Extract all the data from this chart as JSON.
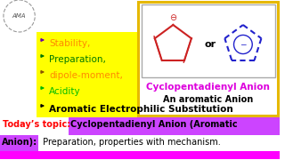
{
  "bg_color": "#ffffff",
  "bullet_items": [
    {
      "text": "Stability,",
      "color": "#ff8800",
      "arrow_color": "#6600aa"
    },
    {
      "text": "Preparation,",
      "color": "#007700",
      "arrow_color": "#007700"
    },
    {
      "text": "dipole-moment,",
      "color": "#ff8800",
      "arrow_color": "#885500"
    },
    {
      "text": "Acidity",
      "color": "#00bb00",
      "arrow_color": "#00bb00"
    },
    {
      "text": "Aromatic Electrophilic Substitution",
      "color": "#000000",
      "arrow_color": "#000000"
    }
  ],
  "yellow_bg": "#ffff00",
  "outer_box_edge": "#e6b800",
  "inner_box_edge": "#aaaaaa",
  "pentagon1_color": "#cc2222",
  "pentagon2_color": "#2222cc",
  "anion_title": "Cyclopentadienyl Anion",
  "anion_title_color": "#dd00dd",
  "anion_sub": "An aromatic Anion",
  "anion_sub_color": "#000000",
  "today_label": "Today’s topic:",
  "today_label_color": "#ff0000",
  "highlight1_text": "Cyclopentadienyl Anion (Aromatic",
  "highlight2_text": "Anion):",
  "highlight_bg": "#cc44ff",
  "rest_text": " Preparation, properties with mechanism.",
  "rest_color": "#000000",
  "bottom_bg": "#ff00ff"
}
